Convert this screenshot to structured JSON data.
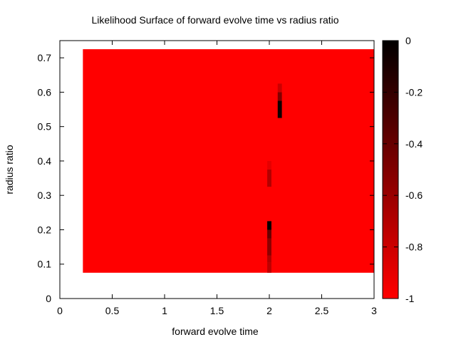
{
  "chart_data": {
    "type": "heatmap",
    "title": "Likelihood Surface of forward evolve time vs radius ratio",
    "xlabel": "forward evolve time",
    "ylabel": "radius ratio",
    "xlim": [
      0,
      3
    ],
    "ylim": [
      0,
      0.75
    ],
    "xticks": [
      0,
      0.5,
      1,
      1.5,
      2,
      2.5,
      3
    ],
    "xtick_labels": [
      "0",
      "0.5",
      "1",
      "1.5",
      "2",
      "2.5",
      "3"
    ],
    "yticks": [
      0,
      0.1,
      0.2,
      0.3,
      0.4,
      0.5,
      0.6,
      0.7
    ],
    "ytick_labels": [
      "0",
      "0.1",
      "0.2",
      "0.3",
      "0.4",
      "0.5",
      "0.6",
      "0.7"
    ],
    "surface": {
      "x_range": [
        0.22,
        3.0
      ],
      "y_range": [
        0.075,
        0.725
      ],
      "background_value": -1
    },
    "cells": [
      {
        "x0": 1.98,
        "x1": 2.02,
        "y0": 0.075,
        "y1": 0.105,
        "value": -0.75
      },
      {
        "x0": 1.98,
        "x1": 2.02,
        "y0": 0.105,
        "y1": 0.125,
        "value": -0.7
      },
      {
        "x0": 1.98,
        "x1": 2.02,
        "y0": 0.125,
        "y1": 0.175,
        "value": -0.55
      },
      {
        "x0": 1.98,
        "x1": 2.02,
        "y0": 0.175,
        "y1": 0.2,
        "value": -0.4
      },
      {
        "x0": 1.98,
        "x1": 2.02,
        "y0": 0.2,
        "y1": 0.225,
        "value": 0
      },
      {
        "x0": 1.98,
        "x1": 2.02,
        "y0": 0.325,
        "y1": 0.375,
        "value": -0.7
      },
      {
        "x0": 1.98,
        "x1": 2.02,
        "y0": 0.375,
        "y1": 0.4,
        "value": -0.9
      },
      {
        "x0": 2.08,
        "x1": 2.12,
        "y0": 0.525,
        "y1": 0.575,
        "value": -0.05
      },
      {
        "x0": 2.08,
        "x1": 2.12,
        "y0": 0.575,
        "y1": 0.6,
        "value": -0.5
      },
      {
        "x0": 2.08,
        "x1": 2.12,
        "y0": 0.6,
        "y1": 0.625,
        "value": -0.8
      }
    ],
    "colorbar": {
      "range": [
        -1,
        0
      ],
      "ticks": [
        0,
        -0.2,
        -0.4,
        -0.6,
        -0.8,
        -1
      ],
      "tick_labels": [
        "0",
        "-0.2",
        "-0.4",
        "-0.6",
        "-0.8",
        "-1"
      ],
      "color_low": "#ff0000",
      "color_high": "#000000"
    },
    "grid": false,
    "legend": "none"
  }
}
